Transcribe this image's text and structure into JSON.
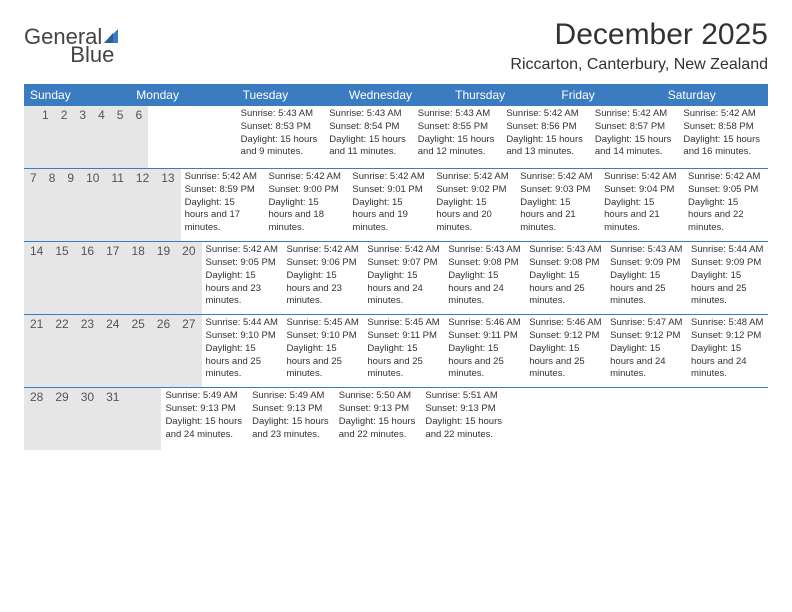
{
  "brand": {
    "word1": "General",
    "word2": "Blue"
  },
  "title": "December 2025",
  "location": "Riccarton, Canterbury, New Zealand",
  "colors": {
    "header_bg": "#3b7bbf",
    "header_text": "#ffffff",
    "daynum_bg": "#e6e6e6",
    "row_divider": "#3b7bbf",
    "body_text": "#333333",
    "page_bg": "#ffffff"
  },
  "day_names": [
    "Sunday",
    "Monday",
    "Tuesday",
    "Wednesday",
    "Thursday",
    "Friday",
    "Saturday"
  ],
  "weeks": [
    {
      "nums": [
        "",
        "1",
        "2",
        "3",
        "4",
        "5",
        "6"
      ],
      "info": [
        "",
        "Sunrise: 5:43 AM\nSunset: 8:53 PM\nDaylight: 15 hours and 9 minutes.",
        "Sunrise: 5:43 AM\nSunset: 8:54 PM\nDaylight: 15 hours and 11 minutes.",
        "Sunrise: 5:43 AM\nSunset: 8:55 PM\nDaylight: 15 hours and 12 minutes.",
        "Sunrise: 5:42 AM\nSunset: 8:56 PM\nDaylight: 15 hours and 13 minutes.",
        "Sunrise: 5:42 AM\nSunset: 8:57 PM\nDaylight: 15 hours and 14 minutes.",
        "Sunrise: 5:42 AM\nSunset: 8:58 PM\nDaylight: 15 hours and 16 minutes."
      ]
    },
    {
      "nums": [
        "7",
        "8",
        "9",
        "10",
        "11",
        "12",
        "13"
      ],
      "info": [
        "Sunrise: 5:42 AM\nSunset: 8:59 PM\nDaylight: 15 hours and 17 minutes.",
        "Sunrise: 5:42 AM\nSunset: 9:00 PM\nDaylight: 15 hours and 18 minutes.",
        "Sunrise: 5:42 AM\nSunset: 9:01 PM\nDaylight: 15 hours and 19 minutes.",
        "Sunrise: 5:42 AM\nSunset: 9:02 PM\nDaylight: 15 hours and 20 minutes.",
        "Sunrise: 5:42 AM\nSunset: 9:03 PM\nDaylight: 15 hours and 21 minutes.",
        "Sunrise: 5:42 AM\nSunset: 9:04 PM\nDaylight: 15 hours and 21 minutes.",
        "Sunrise: 5:42 AM\nSunset: 9:05 PM\nDaylight: 15 hours and 22 minutes."
      ]
    },
    {
      "nums": [
        "14",
        "15",
        "16",
        "17",
        "18",
        "19",
        "20"
      ],
      "info": [
        "Sunrise: 5:42 AM\nSunset: 9:05 PM\nDaylight: 15 hours and 23 minutes.",
        "Sunrise: 5:42 AM\nSunset: 9:06 PM\nDaylight: 15 hours and 23 minutes.",
        "Sunrise: 5:42 AM\nSunset: 9:07 PM\nDaylight: 15 hours and 24 minutes.",
        "Sunrise: 5:43 AM\nSunset: 9:08 PM\nDaylight: 15 hours and 24 minutes.",
        "Sunrise: 5:43 AM\nSunset: 9:08 PM\nDaylight: 15 hours and 25 minutes.",
        "Sunrise: 5:43 AM\nSunset: 9:09 PM\nDaylight: 15 hours and 25 minutes.",
        "Sunrise: 5:44 AM\nSunset: 9:09 PM\nDaylight: 15 hours and 25 minutes."
      ]
    },
    {
      "nums": [
        "21",
        "22",
        "23",
        "24",
        "25",
        "26",
        "27"
      ],
      "info": [
        "Sunrise: 5:44 AM\nSunset: 9:10 PM\nDaylight: 15 hours and 25 minutes.",
        "Sunrise: 5:45 AM\nSunset: 9:10 PM\nDaylight: 15 hours and 25 minutes.",
        "Sunrise: 5:45 AM\nSunset: 9:11 PM\nDaylight: 15 hours and 25 minutes.",
        "Sunrise: 5:46 AM\nSunset: 9:11 PM\nDaylight: 15 hours and 25 minutes.",
        "Sunrise: 5:46 AM\nSunset: 9:12 PM\nDaylight: 15 hours and 25 minutes.",
        "Sunrise: 5:47 AM\nSunset: 9:12 PM\nDaylight: 15 hours and 24 minutes.",
        "Sunrise: 5:48 AM\nSunset: 9:12 PM\nDaylight: 15 hours and 24 minutes."
      ]
    },
    {
      "nums": [
        "28",
        "29",
        "30",
        "31",
        "",
        "",
        ""
      ],
      "info": [
        "Sunrise: 5:49 AM\nSunset: 9:13 PM\nDaylight: 15 hours and 24 minutes.",
        "Sunrise: 5:49 AM\nSunset: 9:13 PM\nDaylight: 15 hours and 23 minutes.",
        "Sunrise: 5:50 AM\nSunset: 9:13 PM\nDaylight: 15 hours and 22 minutes.",
        "Sunrise: 5:51 AM\nSunset: 9:13 PM\nDaylight: 15 hours and 22 minutes.",
        "",
        "",
        ""
      ]
    }
  ]
}
